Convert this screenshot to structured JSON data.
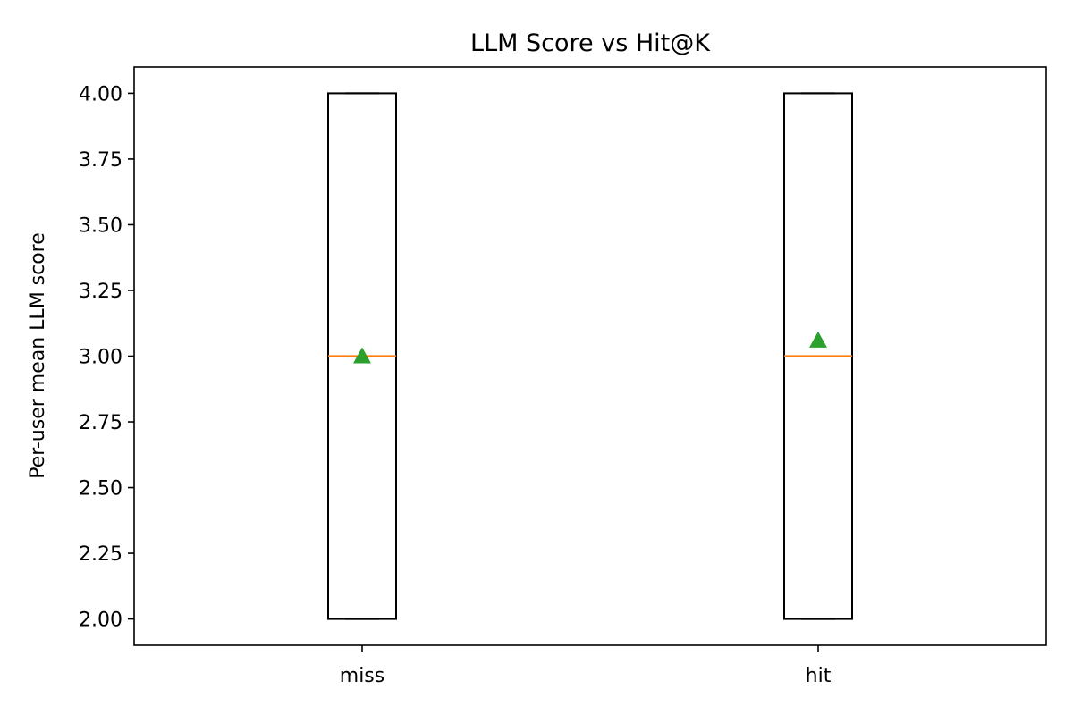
{
  "chart_data": {
    "type": "box",
    "title": "LLM Score vs Hit@K",
    "xlabel": "",
    "ylabel": "Per-user mean LLM score",
    "ylim": [
      1.9,
      4.1
    ],
    "yticks": [
      2.0,
      2.25,
      2.5,
      2.75,
      3.0,
      3.25,
      3.5,
      3.75,
      4.0
    ],
    "ytick_labels": [
      "2.00",
      "2.25",
      "2.50",
      "2.75",
      "3.00",
      "3.25",
      "3.50",
      "3.75",
      "4.00"
    ],
    "categories": [
      "miss",
      "hit"
    ],
    "boxes": [
      {
        "category": "miss",
        "q1": 2.0,
        "median": 3.0,
        "q3": 4.0,
        "whisker_low": 2.0,
        "whisker_high": 4.0,
        "mean": 3.0
      },
      {
        "category": "hit",
        "q1": 2.0,
        "median": 3.0,
        "q3": 4.0,
        "whisker_low": 2.0,
        "whisker_high": 4.0,
        "mean": 3.06
      }
    ],
    "colors": {
      "box": "#000000",
      "median": "#ff7f0e",
      "mean": "#2ca02c"
    },
    "grid": false
  }
}
